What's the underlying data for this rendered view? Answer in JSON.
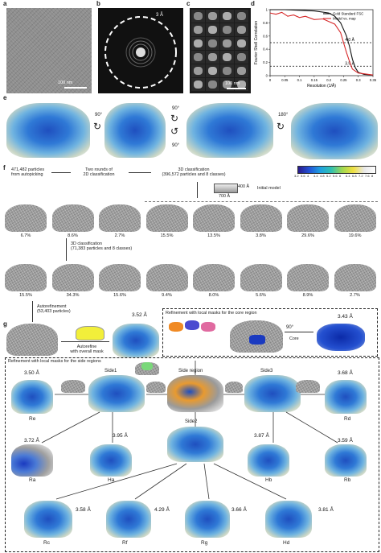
{
  "panels": {
    "a": "a",
    "b": "b",
    "c": "c",
    "d": "d",
    "e": "e",
    "f": "f",
    "g": "g"
  },
  "a": {
    "scale": "100 nm"
  },
  "b": {
    "ring": "3 Å"
  },
  "c": {
    "scale": "100 nm"
  },
  "chart_data": {
    "type": "line",
    "xlabel": "Resolution (1/Å)",
    "ylabel": "Fourier Shell Correlation",
    "xlim": [
      0,
      0.35
    ],
    "ylim": [
      0,
      1
    ],
    "xticks": [
      "0",
      "0.05",
      "0.1",
      "0.15",
      "0.2",
      "0.25",
      "0.3",
      "0.35"
    ],
    "yticks": [
      "0",
      "0.2",
      "0.4",
      "0.6",
      "0.8",
      "1"
    ],
    "series": [
      {
        "name": "Gold Standard FSC",
        "color": "#111111",
        "x": [
          0,
          0.05,
          0.1,
          0.15,
          0.2,
          0.22,
          0.24,
          0.26,
          0.27,
          0.28,
          0.29,
          0.3,
          0.32,
          0.35
        ],
        "y": [
          1.0,
          1.0,
          0.99,
          0.98,
          0.95,
          0.9,
          0.8,
          0.6,
          0.45,
          0.25,
          0.12,
          0.05,
          0.02,
          0.01
        ]
      },
      {
        "name": "Model vs. map",
        "color": "#d62728",
        "x": [
          0,
          0.02,
          0.04,
          0.06,
          0.08,
          0.1,
          0.12,
          0.15,
          0.18,
          0.2,
          0.22,
          0.24,
          0.25,
          0.26,
          0.27,
          0.28,
          0.3,
          0.35
        ],
        "y": [
          0.95,
          0.93,
          0.96,
          0.9,
          0.92,
          0.88,
          0.9,
          0.85,
          0.86,
          0.82,
          0.78,
          0.65,
          0.5,
          0.35,
          0.22,
          0.1,
          0.04,
          0.01
        ]
      }
    ],
    "thresholds": [
      {
        "label": "4.0 Å",
        "y": 0.5
      },
      {
        "label": "3.5 Å",
        "y": 0.143
      }
    ]
  },
  "e": {
    "rot1": "90°",
    "rot2a": "90°",
    "rot2b": "90°",
    "rot3": "180°"
  },
  "colorbar": {
    "ticks": [
      "3.2",
      "3.6",
      "4",
      "4.4",
      "4.8",
      "5.2",
      "5.6",
      "6",
      "6.4",
      "6.8",
      "7.2",
      "7.6",
      "8"
    ]
  },
  "f": {
    "particles": "471,482 particles\nfrom autopicking",
    "rounds": "Two rounds of\n2D classification",
    "class3d": "3D classification\n(396,572 particles and 8 classes)",
    "box": "400 Å",
    "box2": "700 Å",
    "initial": "Initial model",
    "row1": [
      "6.7%",
      "8.6%",
      "2.7%",
      "15.5%",
      "13.5%",
      "3.8%",
      "29.6%",
      "19.6%"
    ],
    "class3d_2": "3D classification\n(71,383 particles and 8 classes)",
    "row2": [
      "15.5%",
      "34.3%",
      "15.6%",
      "9.4%",
      "8.0%",
      "5.6%",
      "8.9%",
      "2.7%"
    ],
    "autoref": "Autorefinement\n(53,403 particles)"
  },
  "g": {
    "autorefine": "Autorefine\nwith overall mask",
    "res_overall": "3.52 Å",
    "core_title": "Refinement with local masks for the core region",
    "core_rot": "90°",
    "core_label": "Core",
    "res_core": "3.43 Å",
    "side_title": "Refinement with local masks for the side regions",
    "side_region": "Side region",
    "side1": "Side1",
    "side2": "Side2",
    "side3": "Side3",
    "Re": {
      "res": "3.50 Å",
      "name": "Re"
    },
    "Rd": {
      "res": "3.68 Å",
      "name": "Rd"
    },
    "Ra": {
      "res": "3.72 Å",
      "name": "Ra"
    },
    "Ha": {
      "res": "3.95 Å",
      "name": "Ha"
    },
    "Hb": {
      "res": "3.87 Å",
      "name": "Hb"
    },
    "Rb": {
      "res": "3.59 Å",
      "name": "Rb"
    },
    "Rc": {
      "res": "3.58 Å",
      "name": "Rc"
    },
    "Rf": {
      "res": "4.29 Å",
      "name": "Rf"
    },
    "Rg": {
      "res": "3.66 Å",
      "name": "Rg"
    },
    "Hd": {
      "res": "3.81 Å",
      "name": "Hd"
    }
  }
}
